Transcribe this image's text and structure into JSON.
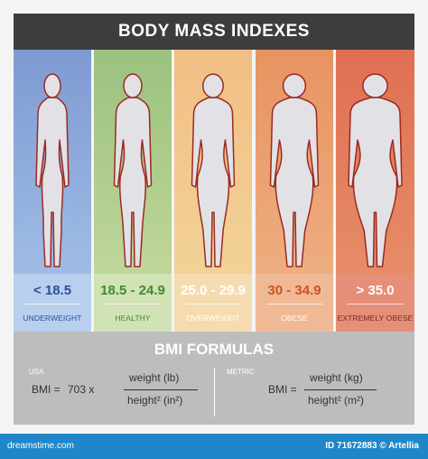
{
  "title": "BODY MASS INDEXES",
  "categories": [
    {
      "range": "< 18.5",
      "label": "UNDERWEIGHT",
      "top": "#7f9ad2",
      "bottom": "#a7c4ea",
      "band": "#b9cfee",
      "range_color": "#2b4f9c",
      "label_color": "#2b4f9c",
      "width": 1.0
    },
    {
      "range": "18.5 - 24.9",
      "label": "HEALTHY",
      "top": "#9bc17f",
      "bottom": "#c8dca0",
      "band": "#d1e2b5",
      "range_color": "#3f8c2e",
      "label_color": "#3f8c2e",
      "width": 1.25
    },
    {
      "range": "25.0 - 29.9",
      "label": "OVERWEIGHT",
      "top": "#f1be85",
      "bottom": "#f3d79a",
      "band": "#f5dcb0",
      "range_color": "#ffffff",
      "label_color": "#ffffff",
      "width": 1.55
    },
    {
      "range": "30 - 34.9",
      "label": "OBESE",
      "top": "#e89361",
      "bottom": "#efb487",
      "band": "#f0b996",
      "range_color": "#d0521f",
      "label_color": "#ffffff",
      "width": 1.85
    },
    {
      "range": "> 35.0",
      "label": "EXTREMELY OBESE",
      "top": "#df6f53",
      "bottom": "#e8946c",
      "band": "#e58f78",
      "range_color": "#ffffff",
      "label_color": "#7a2a1c",
      "width": 2.15
    }
  ],
  "formulas": {
    "title": "BMI FORMULAS",
    "usa": {
      "label": "USA",
      "bmi": "BMI =",
      "factor": "703 x",
      "numerator": "weight (lb)",
      "denominator": "height² (in²)"
    },
    "metric": {
      "label": "METRIC",
      "bmi": "BMI =",
      "numerator": "weight (kg)",
      "denominator": "height² (m²)"
    }
  },
  "footer": {
    "left": "dreamstime.com",
    "right": "ID 71672883 © Artellia"
  },
  "colors": {
    "header_bg": "#3d3d3d",
    "footer_bg": "#1f86c9",
    "formula_bg": "#bdbdbd",
    "figure_fill": "#e2e2e6",
    "figure_stroke": "#9c2a22"
  }
}
